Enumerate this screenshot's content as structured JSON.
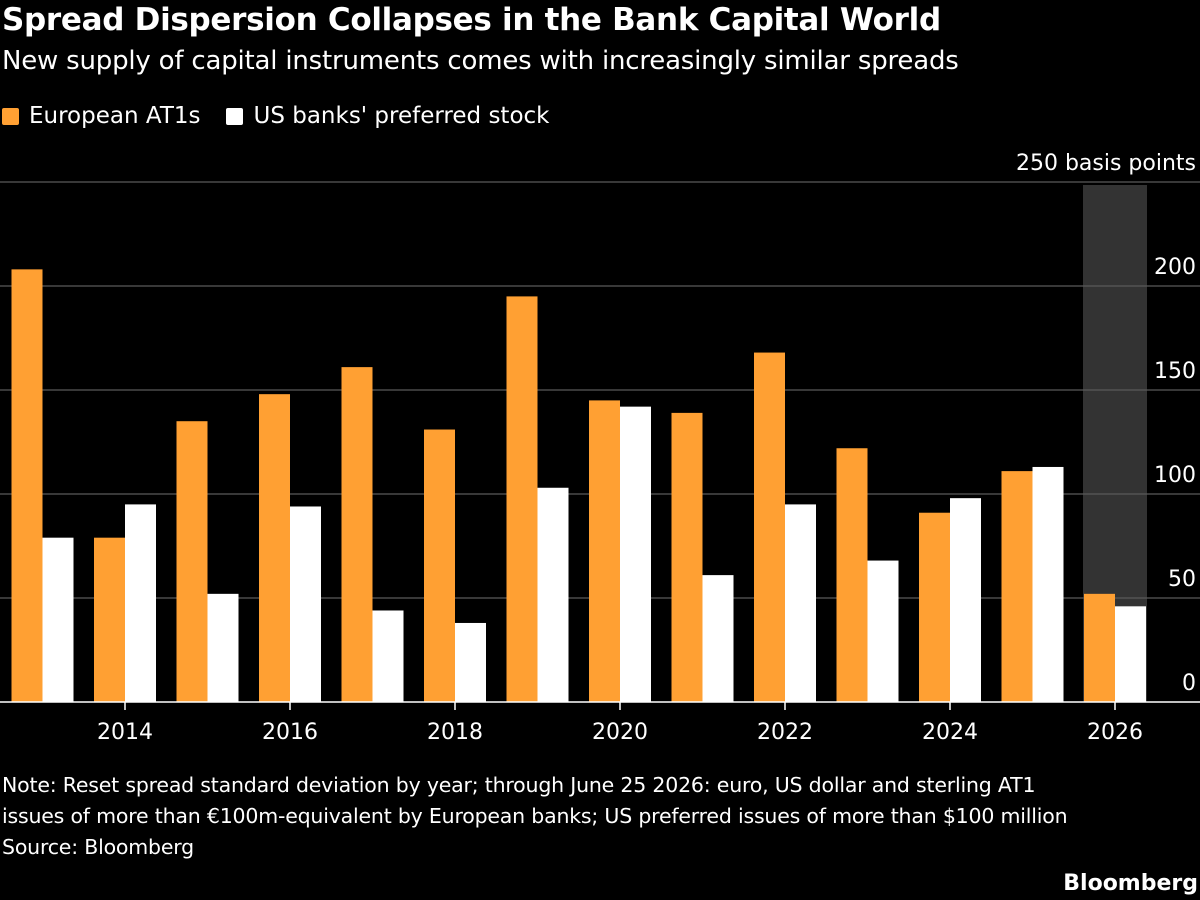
{
  "header": {
    "title": "Spread Dispersion Collapses in the Bank Capital World",
    "subtitle": "New supply of capital instruments comes with increasingly similar spreads"
  },
  "footer": {
    "note_line1": "Note: Reset spread standard deviation by year; through June 25 2026: euro, US dollar and sterling AT1",
    "note_line2": "issues of more than €100m-equivalent by European banks; US preferred issues of more than $100 million",
    "source": "Source: Bloomberg",
    "logo": "Bloomberg"
  },
  "chart_data": {
    "type": "bar",
    "title": "Spread Dispersion Collapses in the Bank Capital World",
    "subtitle": "New supply of capital instruments comes with increasingly similar spreads",
    "categories": [
      2013,
      2014,
      2015,
      2016,
      2017,
      2018,
      2019,
      2020,
      2021,
      2022,
      2023,
      2024,
      2025,
      2026
    ],
    "tick_labels": [
      "2014",
      "2016",
      "2018",
      "2020",
      "2022",
      "2024",
      "2026"
    ],
    "series": [
      {
        "name": "European AT1s",
        "color": "#FFA033",
        "values": [
          208,
          79,
          135,
          148,
          161,
          131,
          195,
          145,
          139,
          168,
          122,
          91,
          111,
          52
        ]
      },
      {
        "name": "US banks' preferred stock",
        "color": "#FFFFFF",
        "values": [
          79,
          95,
          52,
          94,
          44,
          38,
          103,
          142,
          61,
          95,
          68,
          98,
          113,
          46
        ]
      }
    ],
    "ylim": [
      0,
      250
    ],
    "y_ticks": [
      0,
      50,
      100,
      150,
      200,
      250
    ],
    "y_top_label": "250 basis points",
    "xlabel": "",
    "ylabel": "",
    "highlight_category": 2026,
    "highlight_color": "#333333",
    "grid": true,
    "legend": "top-left"
  }
}
